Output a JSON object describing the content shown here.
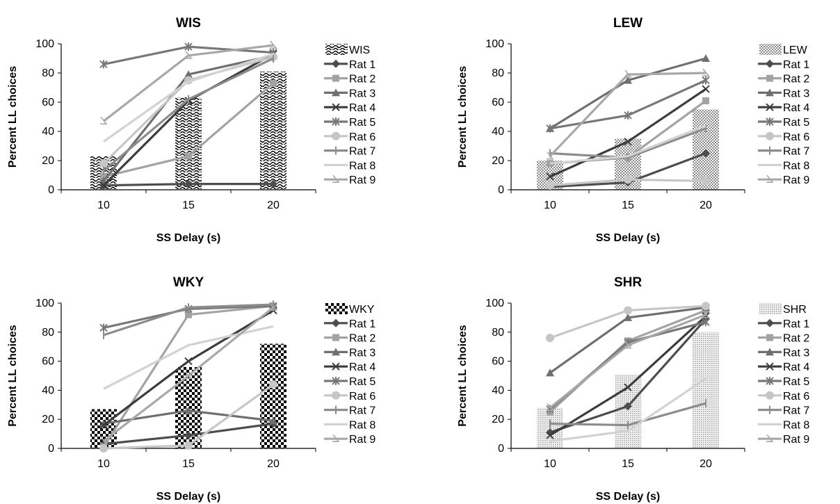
{
  "chart_data": [
    {
      "type": "bar",
      "title": "WIS",
      "xlabel": "SS Delay (s)",
      "ylabel": "Percent LL choices",
      "categories": [
        "10",
        "15",
        "20"
      ],
      "ylim": [
        0,
        100
      ],
      "yticks": [
        "0",
        "20",
        "40",
        "60",
        "80",
        "100"
      ],
      "bar_series": {
        "name": "WIS",
        "values": [
          23,
          63,
          81
        ]
      },
      "series": [
        {
          "name": "Rat 1",
          "values": [
            3,
            4,
            4
          ]
        },
        {
          "name": "Rat 2",
          "values": [
            9,
            23,
            73
          ]
        },
        {
          "name": "Rat 3",
          "values": [
            6,
            79,
            92
          ]
        },
        {
          "name": "Rat 4",
          "values": [
            3,
            61,
            93
          ]
        },
        {
          "name": "Rat 5",
          "values": [
            86,
            98,
            94
          ]
        },
        {
          "name": "Rat 6",
          "values": [
            18,
            75,
            91
          ]
        },
        {
          "name": "Rat 7",
          "values": [
            13,
            62,
            90
          ]
        },
        {
          "name": "Rat 8",
          "values": [
            33,
            74,
            93
          ]
        },
        {
          "name": "Rat 9",
          "values": [
            47,
            92,
            99
          ]
        }
      ]
    },
    {
      "type": "bar",
      "title": "LEW",
      "xlabel": "SS Delay (s)",
      "ylabel": "Percent LL choices",
      "categories": [
        "10",
        "15",
        "20"
      ],
      "ylim": [
        0,
        100
      ],
      "yticks": [
        "0",
        "20",
        "40",
        "60",
        "80",
        "100"
      ],
      "bar_series": {
        "name": "LEW",
        "values": [
          20,
          35,
          55
        ]
      },
      "series": [
        {
          "name": "Rat 1",
          "values": [
            2,
            5,
            25
          ]
        },
        {
          "name": "Rat 2",
          "values": [
            18,
            22,
            61
          ]
        },
        {
          "name": "Rat 3",
          "values": [
            42,
            75,
            90
          ]
        },
        {
          "name": "Rat 4",
          "values": [
            9,
            33,
            69
          ]
        },
        {
          "name": "Rat 5",
          "values": [
            42,
            51,
            75
          ]
        },
        {
          "name": "Rat 6",
          "values": [
            3,
            7,
            6
          ]
        },
        {
          "name": "Rat 7",
          "values": [
            25,
            22,
            42
          ]
        },
        {
          "name": "Rat 8",
          "values": [
            18,
            23,
            44
          ]
        },
        {
          "name": "Rat 9",
          "values": [
            23,
            79,
            80
          ]
        }
      ]
    },
    {
      "type": "bar",
      "title": "WKY",
      "xlabel": "SS Delay (s)",
      "ylabel": "Percent LL choices",
      "categories": [
        "10",
        "15",
        "20"
      ],
      "ylim": [
        0,
        100
      ],
      "yticks": [
        "0",
        "20",
        "40",
        "60",
        "80",
        "100"
      ],
      "bar_series": {
        "name": "WKY",
        "values": [
          27,
          56,
          72
        ]
      },
      "series": [
        {
          "name": "Rat 1",
          "values": [
            3,
            9,
            17
          ]
        },
        {
          "name": "Rat 2",
          "values": [
            1,
            92,
            98
          ]
        },
        {
          "name": "Rat 3",
          "values": [
            17,
            26,
            19
          ]
        },
        {
          "name": "Rat 4",
          "values": [
            16,
            60,
            95
          ]
        },
        {
          "name": "Rat 5",
          "values": [
            83,
            96,
            98
          ]
        },
        {
          "name": "Rat 6",
          "values": [
            0,
            2,
            44
          ]
        },
        {
          "name": "Rat 7",
          "values": [
            78,
            97,
            99
          ]
        },
        {
          "name": "Rat 8",
          "values": [
            41,
            71,
            84
          ]
        },
        {
          "name": "Rat 9",
          "values": [
            5,
            50,
            97
          ]
        }
      ]
    },
    {
      "type": "bar",
      "title": "SHR",
      "xlabel": "SS Delay (s)",
      "ylabel": "Percent LL choices",
      "categories": [
        "10",
        "15",
        "20"
      ],
      "ylim": [
        0,
        100
      ],
      "yticks": [
        "0",
        "20",
        "40",
        "60",
        "80",
        "100"
      ],
      "bar_series": {
        "name": "SHR",
        "values": [
          28,
          51,
          80
        ]
      },
      "series": [
        {
          "name": "Rat 1",
          "values": [
            11,
            29,
            89
          ]
        },
        {
          "name": "Rat 2",
          "values": [
            25,
            74,
            95
          ]
        },
        {
          "name": "Rat 3",
          "values": [
            52,
            90,
            97
          ]
        },
        {
          "name": "Rat 4",
          "values": [
            9,
            42,
            91
          ]
        },
        {
          "name": "Rat 5",
          "values": [
            27,
            73,
            87
          ]
        },
        {
          "name": "Rat 6",
          "values": [
            76,
            95,
            98
          ]
        },
        {
          "name": "Rat 7",
          "values": [
            17,
            16,
            31
          ]
        },
        {
          "name": "Rat 8",
          "values": [
            5,
            12,
            48
          ]
        },
        {
          "name": "Rat 9",
          "values": [
            28,
            71,
            92
          ]
        }
      ]
    }
  ]
}
